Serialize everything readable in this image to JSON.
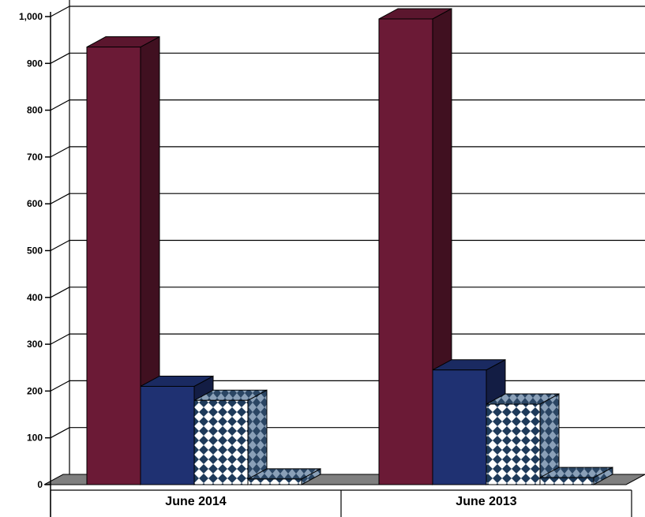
{
  "chart_data": {
    "type": "bar",
    "title": "",
    "xlabel": "",
    "ylabel": "",
    "ylim": [
      0,
      1000
    ],
    "yticks": [
      "0",
      "100",
      "200",
      "300",
      "400",
      "500",
      "600",
      "700",
      "800",
      "900",
      "1,000"
    ],
    "grid": true,
    "style": "3d-clustered-column",
    "categories": [
      "June 2014",
      "June 2013"
    ],
    "series": [
      {
        "values": [
          935,
          995
        ],
        "color": "#6b1a36",
        "pattern": "solid"
      },
      {
        "values": [
          210,
          245
        ],
        "color": "#1f3172",
        "pattern": "solid"
      },
      {
        "values": [
          180,
          172
        ],
        "color": "#1e3a5a",
        "pattern": "diamond-check"
      },
      {
        "values": [
          12,
          15
        ],
        "color": "#1e3a5a",
        "pattern": "diamond-check"
      }
    ]
  }
}
